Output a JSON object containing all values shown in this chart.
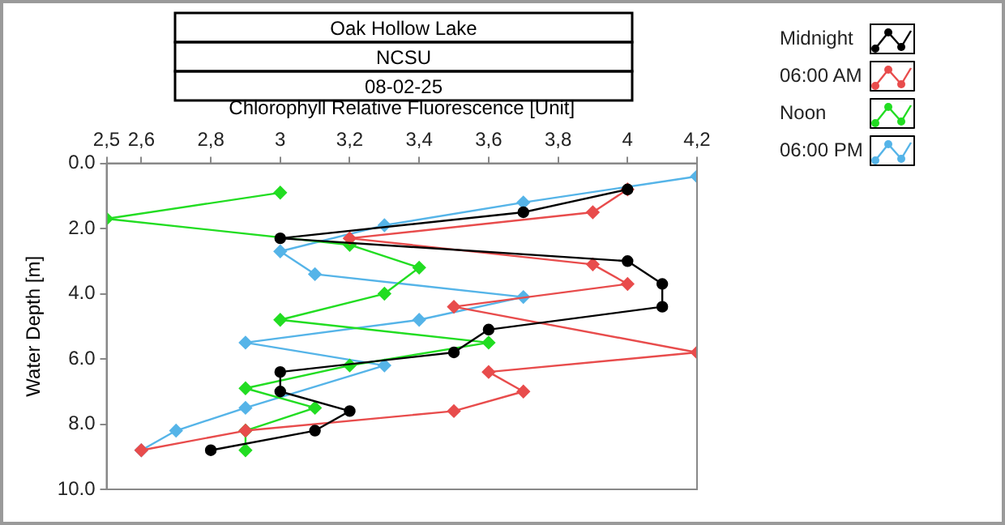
{
  "chart_data": {
    "type": "line",
    "title": "Oak Hollow Lake",
    "subtitle": "NCSU",
    "annotations": [
      "08-02-25"
    ],
    "xlabel": "Chlorophyll Relative Fluorescence [Unit]",
    "ylabel": "Water Depth [m]",
    "xlim": [
      2.5,
      4.2
    ],
    "xticks": [
      {
        "value": 2.5,
        "label": "2,5"
      },
      {
        "value": 2.6,
        "label": "2,6"
      },
      {
        "value": 2.8,
        "label": "2,8"
      },
      3,
      {
        "value": 3.2,
        "label": "3,2"
      },
      {
        "value": 3.4,
        "label": "3,4"
      },
      {
        "value": 3.6,
        "label": "3,6"
      },
      {
        "value": 3.8,
        "label": "3,8"
      },
      4,
      {
        "value": 4.2,
        "label": "4,2"
      }
    ],
    "ylim": [
      10,
      0
    ],
    "yticks": [
      {
        "value": 0,
        "label": "0.0"
      },
      {
        "value": 2,
        "label": "2.0"
      },
      {
        "value": 4,
        "label": "4.0"
      },
      {
        "value": 6,
        "label": "6.0"
      },
      {
        "value": 8,
        "label": "8.0"
      },
      {
        "value": 10,
        "label": "10.0"
      }
    ],
    "grid": false,
    "legend": "top right",
    "line_style": "solid",
    "series": [
      {
        "name": "Midnight",
        "color": "#000000",
        "marker": "circle",
        "x": [
          4.0,
          3.7,
          3.0,
          4.0,
          4.1,
          4.1,
          3.6,
          3.5,
          3.0,
          3.0,
          3.2,
          3.1,
          2.8
        ],
        "values": [
          0.8,
          1.5,
          2.3,
          3.0,
          3.7,
          4.4,
          5.1,
          5.8,
          6.4,
          7.0,
          7.6,
          8.2,
          8.8
        ]
      },
      {
        "name": "06:00 AM",
        "color": "#e84c4c",
        "marker": "diamond",
        "x": [
          4.0,
          3.9,
          3.2,
          3.9,
          4.0,
          3.5,
          4.2,
          3.6,
          3.7,
          3.5,
          2.9,
          2.6
        ],
        "values": [
          0.8,
          1.5,
          2.3,
          3.1,
          3.7,
          4.4,
          5.8,
          6.4,
          7.0,
          7.6,
          8.2,
          8.8
        ]
      },
      {
        "name": "Noon",
        "color": "#22dd22",
        "marker": "diamond",
        "x": [
          3.0,
          2.5,
          3.2,
          3.4,
          3.3,
          3.0,
          3.6,
          3.2,
          2.9,
          3.1,
          2.9,
          2.9
        ],
        "values": [
          0.9,
          1.7,
          2.5,
          3.2,
          4.0,
          4.8,
          5.5,
          6.2,
          6.9,
          7.5,
          8.2,
          8.8
        ]
      },
      {
        "name": "06:00 PM",
        "color": "#55b4e8",
        "marker": "diamond",
        "x": [
          4.2,
          3.7,
          3.3,
          3.0,
          3.1,
          3.7,
          3.4,
          2.9,
          3.3,
          2.9,
          2.7,
          2.6
        ],
        "values": [
          0.4,
          1.2,
          1.9,
          2.7,
          3.4,
          4.1,
          4.8,
          5.5,
          6.2,
          7.5,
          8.2,
          8.8
        ]
      }
    ]
  }
}
